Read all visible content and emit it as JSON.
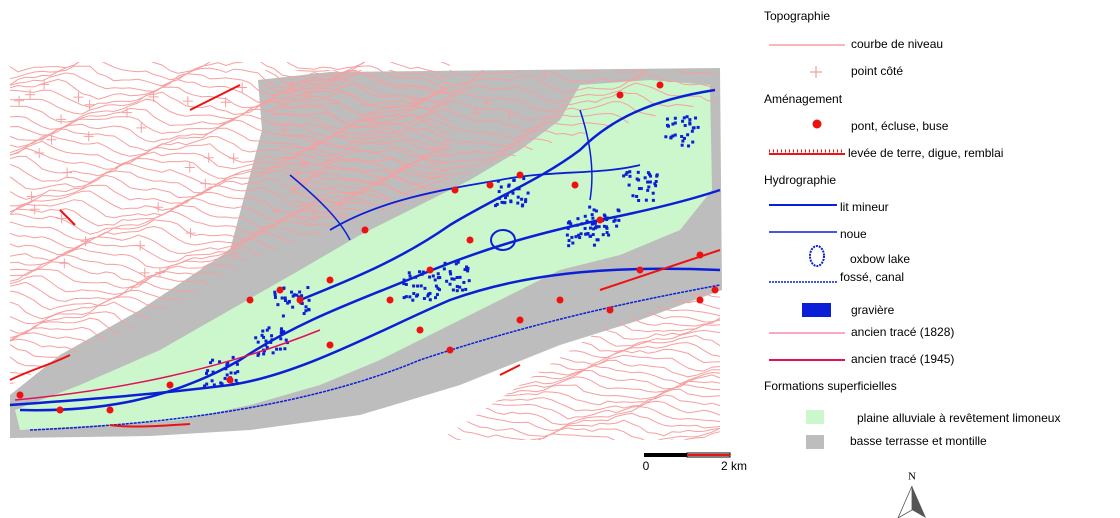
{
  "legend": {
    "sections": [
      {
        "title": "Topographie",
        "items": [
          "courbe de niveau",
          "point côté"
        ]
      },
      {
        "title": "Aménagement",
        "items": [
          "pont, écluse, buse",
          "levée de terre, digue, remblai"
        ]
      },
      {
        "title": "Hydrographie",
        "items": [
          "lit mineur",
          "noue",
          "oxbow lake",
          "fossé, canal",
          "gravière",
          "ancien tracé (1828)",
          "ancien tracé (1945)"
        ]
      },
      {
        "title": "Formations superficielles",
        "items": [
          "plaine alluviale à revêtement limoneux",
          "basse terrasse et montille"
        ]
      }
    ]
  },
  "scale_bar": {
    "labels": [
      "0",
      "2 km"
    ]
  },
  "north_arrow": {
    "label": "N"
  }
}
